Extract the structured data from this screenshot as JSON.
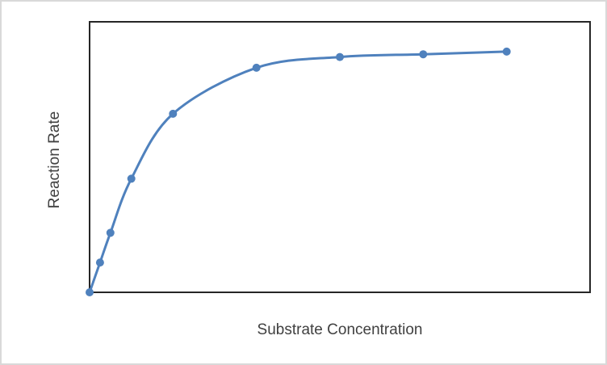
{
  "chart_data": {
    "type": "line",
    "title": "",
    "xlabel": "Substrate Concentration",
    "ylabel": "Reaction Rate",
    "x": [
      0,
      0.25,
      0.5,
      1,
      2,
      4,
      6,
      8,
      10
    ],
    "values": [
      0,
      11,
      22,
      42,
      66,
      83,
      87,
      88,
      89
    ],
    "xlim": [
      0,
      12
    ],
    "ylim": [
      0,
      100
    ],
    "grid": false,
    "legend": "none",
    "tick_labels": "none",
    "marker": "circle",
    "smooth_line": true
  },
  "colors": {
    "series": "#4F81BD",
    "plot_border": "#262626",
    "outer_border": "#D9D9D9",
    "label_text": "#404040",
    "background": "#FFFFFF"
  }
}
